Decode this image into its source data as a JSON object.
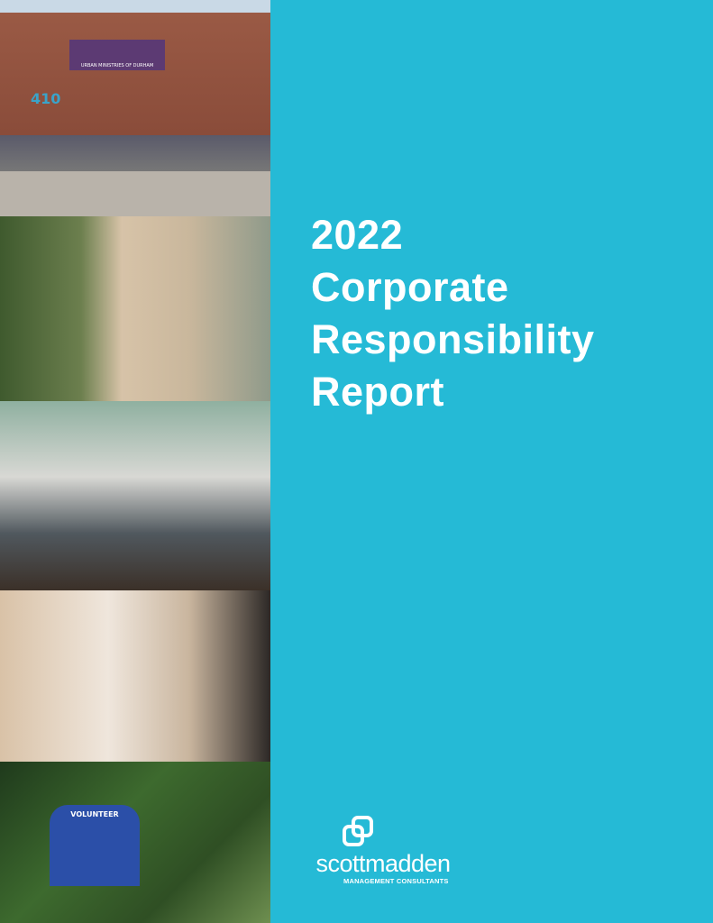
{
  "cover": {
    "title_lines": [
      "2022",
      "Corporate",
      "Responsibility",
      "Report"
    ],
    "background_color": "#25bad6"
  },
  "photos": {
    "sign_text": "URBAN MINISTRIES OF DURHAM",
    "building_number": "410",
    "shirt_text": "VOLUNTEER"
  },
  "logo": {
    "wordmark": "scottmadden",
    "tagline": "MANAGEMENT CONSULTANTS",
    "icon": "interlocking-squares-icon"
  }
}
